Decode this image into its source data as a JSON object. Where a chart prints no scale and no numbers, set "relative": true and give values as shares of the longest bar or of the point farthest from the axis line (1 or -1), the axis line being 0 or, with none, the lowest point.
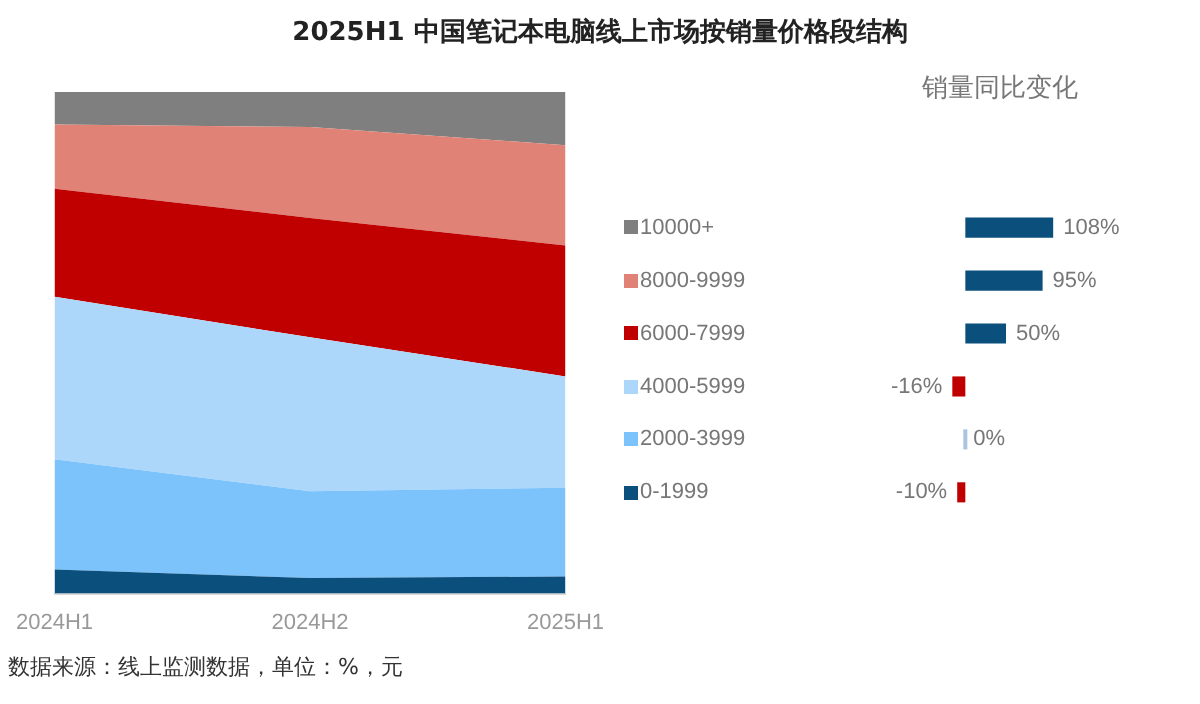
{
  "chart_data": [
    {
      "type": "area",
      "title": "2025H1 中国笔记本电脑线上市场按销量价格段结构",
      "relative": true,
      "stacked": true,
      "marker": "none",
      "grid": false,
      "categories": [
        "2024H1",
        "2024H2",
        "2025H1"
      ],
      "series": [
        {
          "color": "#0b4f7d",
          "values": [
            0.048,
            0.031,
            0.034
          ]
        },
        {
          "color": "#7cc2fb",
          "values": [
            0.22,
            0.173,
            0.177
          ]
        },
        {
          "color": "#acd7fb",
          "values": [
            0.324,
            0.307,
            0.222
          ]
        },
        {
          "color": "#c00000",
          "values": [
            0.215,
            0.238,
            0.261
          ]
        },
        {
          "color": "#e08276",
          "values": [
            0.128,
            0.181,
            0.2
          ]
        },
        {
          "color": "#7f7f7f",
          "values": [
            0.065,
            0.07,
            0.106
          ]
        }
      ],
      "annotations": [
        "数据来源：线上监测数据，单位：%，元"
      ]
    },
    {
      "type": "bar",
      "title": "销量同比变化",
      "orientation": "horizontal",
      "tick_labels": "y",
      "grid": false,
      "categories": [
        "10000+",
        "8000-9999",
        "6000-7999",
        "4000-5999",
        "2000-3999",
        "0-1999"
      ],
      "values": [
        108,
        95,
        50,
        -16,
        0,
        -10
      ],
      "colors": [
        "#0b4f7d",
        "#0b4f7d",
        "#0b4f7d",
        "#c00000",
        "#a9c4dc",
        "#c00000"
      ],
      "value_labels": [
        "108%",
        "95%",
        "50%",
        "-16%",
        "0%",
        "-10%"
      ]
    }
  ]
}
